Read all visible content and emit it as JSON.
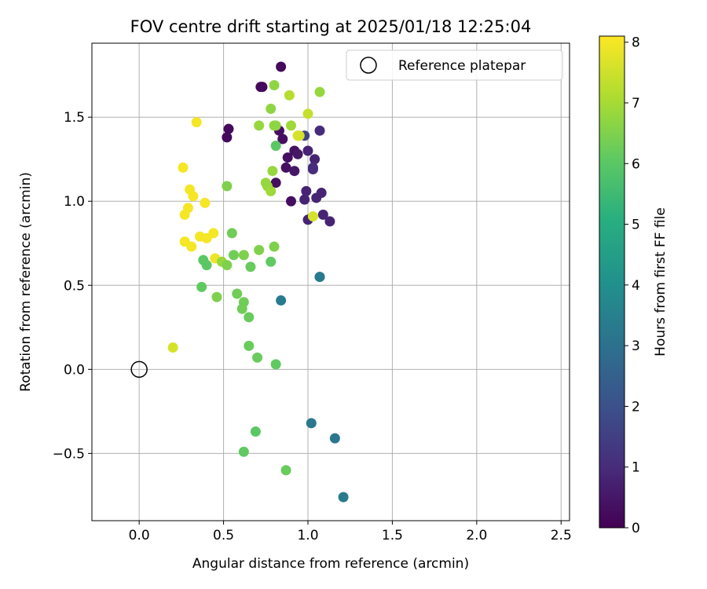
{
  "chart_data": {
    "type": "scatter",
    "title": "FOV centre drift starting at 2025/01/18 12:25:04",
    "xlabel": "Angular distance from reference (arcmin)",
    "ylabel": "Rotation from reference (arcmin)",
    "xlim": [
      -0.28,
      2.55
    ],
    "ylim": [
      -0.9,
      1.94
    ],
    "xticks": [
      "0.0",
      "0.5",
      "1.0",
      "1.5",
      "2.0",
      "2.5"
    ],
    "yticks": [
      "−0.5",
      "0.0",
      "0.5",
      "1.0",
      "1.5"
    ],
    "grid": true,
    "legend": {
      "placement": "top-right",
      "entries": [
        "Reference platepar"
      ]
    },
    "reference_point": {
      "x": 0.0,
      "y": 0.0
    },
    "colorbar": {
      "label": "Hours from first FF file",
      "colormap": "viridis",
      "range": [
        0,
        8.1
      ],
      "ticks": [
        "0",
        "1",
        "2",
        "3",
        "4",
        "5",
        "6",
        "7",
        "8"
      ]
    },
    "series": [
      {
        "points": [
          {
            "x": 0.84,
            "y": 1.8,
            "c": 0.2
          },
          {
            "x": 0.72,
            "y": 1.68,
            "c": 0.2
          },
          {
            "x": 0.73,
            "y": 1.68,
            "c": 0.2
          },
          {
            "x": 0.53,
            "y": 1.43,
            "c": 0.2
          },
          {
            "x": 0.52,
            "y": 1.38,
            "c": 0.2
          },
          {
            "x": 0.83,
            "y": 1.42,
            "c": 0.3
          },
          {
            "x": 0.85,
            "y": 1.37,
            "c": 0.3
          },
          {
            "x": 0.92,
            "y": 1.3,
            "c": 0.4
          },
          {
            "x": 0.94,
            "y": 1.28,
            "c": 0.5
          },
          {
            "x": 0.88,
            "y": 1.26,
            "c": 0.3
          },
          {
            "x": 0.87,
            "y": 1.2,
            "c": 0.3
          },
          {
            "x": 0.92,
            "y": 1.18,
            "c": 0.5
          },
          {
            "x": 0.81,
            "y": 1.11,
            "c": 0.3
          },
          {
            "x": 1.0,
            "y": 1.3,
            "c": 0.8
          },
          {
            "x": 1.04,
            "y": 1.25,
            "c": 0.8
          },
          {
            "x": 1.03,
            "y": 1.2,
            "c": 1.0
          },
          {
            "x": 1.03,
            "y": 1.19,
            "c": 1.0
          },
          {
            "x": 0.98,
            "y": 1.39,
            "c": 1.6
          },
          {
            "x": 1.07,
            "y": 1.42,
            "c": 1.0
          },
          {
            "x": 0.99,
            "y": 1.06,
            "c": 0.8
          },
          {
            "x": 1.08,
            "y": 1.05,
            "c": 0.8
          },
          {
            "x": 1.05,
            "y": 1.02,
            "c": 0.8
          },
          {
            "x": 0.98,
            "y": 1.01,
            "c": 0.8
          },
          {
            "x": 0.9,
            "y": 1.0,
            "c": 0.3
          },
          {
            "x": 1.09,
            "y": 0.92,
            "c": 0.8
          },
          {
            "x": 1.0,
            "y": 0.89,
            "c": 0.8
          },
          {
            "x": 1.13,
            "y": 0.88,
            "c": 0.8
          },
          {
            "x": 1.07,
            "y": 0.55,
            "c": 3.3
          },
          {
            "x": 1.07,
            "y": 0.55,
            "c": 3.3
          },
          {
            "x": 0.84,
            "y": 0.41,
            "c": 3.3
          },
          {
            "x": 1.02,
            "y": -0.32,
            "c": 3.2
          },
          {
            "x": 1.16,
            "y": -0.41,
            "c": 3.2
          },
          {
            "x": 1.21,
            "y": -0.76,
            "c": 3.3
          },
          {
            "x": 0.8,
            "y": 1.69,
            "c": 6.7
          },
          {
            "x": 0.89,
            "y": 1.63,
            "c": 7.2
          },
          {
            "x": 1.07,
            "y": 1.65,
            "c": 6.8
          },
          {
            "x": 0.78,
            "y": 1.55,
            "c": 6.7
          },
          {
            "x": 1.0,
            "y": 1.52,
            "c": 7.4
          },
          {
            "x": 0.71,
            "y": 1.45,
            "c": 6.8
          },
          {
            "x": 0.8,
            "y": 1.45,
            "c": 6.7
          },
          {
            "x": 0.81,
            "y": 1.45,
            "c": 6.7
          },
          {
            "x": 0.9,
            "y": 1.45,
            "c": 6.9
          },
          {
            "x": 0.95,
            "y": 1.39,
            "c": 7.6
          },
          {
            "x": 0.94,
            "y": 1.39,
            "c": 7.6
          },
          {
            "x": 0.81,
            "y": 1.33,
            "c": 6.0
          },
          {
            "x": 0.79,
            "y": 1.18,
            "c": 6.8
          },
          {
            "x": 0.75,
            "y": 1.11,
            "c": 6.8
          },
          {
            "x": 0.76,
            "y": 1.09,
            "c": 6.8
          },
          {
            "x": 0.78,
            "y": 1.06,
            "c": 6.9
          },
          {
            "x": 0.52,
            "y": 1.09,
            "c": 6.5
          },
          {
            "x": 1.03,
            "y": 0.91,
            "c": 7.6
          },
          {
            "x": 0.34,
            "y": 1.47,
            "c": 8.0
          },
          {
            "x": 0.26,
            "y": 1.2,
            "c": 8.0
          },
          {
            "x": 0.3,
            "y": 1.07,
            "c": 8.0
          },
          {
            "x": 0.32,
            "y": 1.03,
            "c": 8.0
          },
          {
            "x": 0.39,
            "y": 0.99,
            "c": 8.0
          },
          {
            "x": 0.29,
            "y": 0.96,
            "c": 8.0
          },
          {
            "x": 0.27,
            "y": 0.92,
            "c": 8.0
          },
          {
            "x": 0.36,
            "y": 0.79,
            "c": 8.0
          },
          {
            "x": 0.4,
            "y": 0.78,
            "c": 8.0
          },
          {
            "x": 0.44,
            "y": 0.81,
            "c": 8.0
          },
          {
            "x": 0.27,
            "y": 0.76,
            "c": 8.0
          },
          {
            "x": 0.31,
            "y": 0.73,
            "c": 8.0
          },
          {
            "x": 0.45,
            "y": 0.66,
            "c": 7.9
          },
          {
            "x": 0.2,
            "y": 0.13,
            "c": 7.6
          },
          {
            "x": 0.55,
            "y": 0.81,
            "c": 6.3
          },
          {
            "x": 0.8,
            "y": 0.73,
            "c": 6.5
          },
          {
            "x": 0.71,
            "y": 0.71,
            "c": 6.5
          },
          {
            "x": 0.62,
            "y": 0.68,
            "c": 6.5
          },
          {
            "x": 0.56,
            "y": 0.68,
            "c": 6.3
          },
          {
            "x": 0.49,
            "y": 0.64,
            "c": 6.8
          },
          {
            "x": 0.52,
            "y": 0.62,
            "c": 6.5
          },
          {
            "x": 0.38,
            "y": 0.65,
            "c": 6.0
          },
          {
            "x": 0.4,
            "y": 0.62,
            "c": 6.0
          },
          {
            "x": 0.78,
            "y": 0.64,
            "c": 6.1
          },
          {
            "x": 0.66,
            "y": 0.61,
            "c": 6.2
          },
          {
            "x": 0.37,
            "y": 0.49,
            "c": 6.1
          },
          {
            "x": 0.46,
            "y": 0.43,
            "c": 6.5
          },
          {
            "x": 0.58,
            "y": 0.45,
            "c": 6.3
          },
          {
            "x": 0.62,
            "y": 0.4,
            "c": 6.3
          },
          {
            "x": 0.61,
            "y": 0.36,
            "c": 6.3
          },
          {
            "x": 0.65,
            "y": 0.31,
            "c": 6.2
          },
          {
            "x": 0.65,
            "y": 0.14,
            "c": 6.2
          },
          {
            "x": 0.7,
            "y": 0.07,
            "c": 6.2
          },
          {
            "x": 0.81,
            "y": 0.03,
            "c": 6.1
          },
          {
            "x": 0.69,
            "y": -0.37,
            "c": 6.0
          },
          {
            "x": 0.62,
            "y": -0.49,
            "c": 6.1
          },
          {
            "x": 0.87,
            "y": -0.6,
            "c": 6.2
          }
        ]
      }
    ]
  }
}
